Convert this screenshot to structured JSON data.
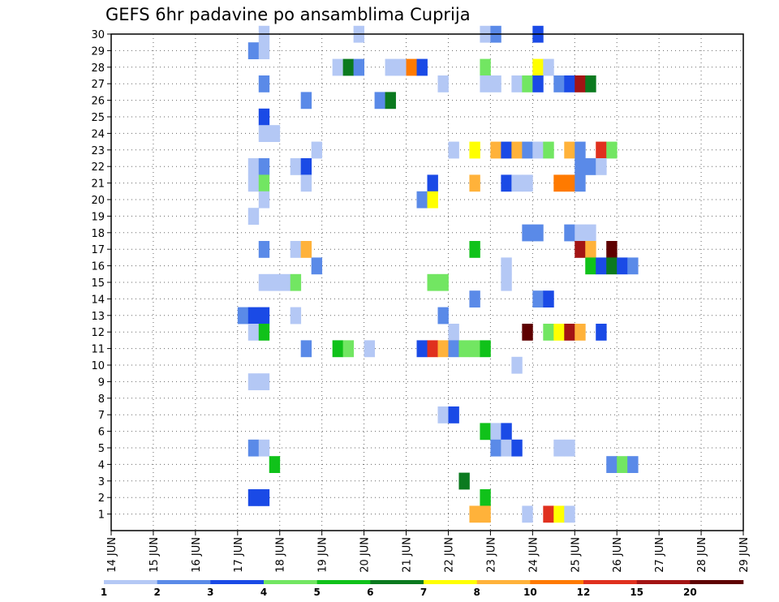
{
  "chart_data": {
    "type": "heatmap",
    "title": "GEFS 6hr padavine po ansamblima Cuprija",
    "xlabel": "",
    "ylabel": "",
    "x_tick_labels": [
      "14 JUN",
      "15 JUN",
      "16 JUN",
      "17 JUN",
      "18 JUN",
      "19 JUN",
      "20 JUN",
      "21 JUN",
      "22 JUN",
      "23 JUN",
      "24 JUN",
      "25 JUN",
      "26 JUN",
      "27 JUN",
      "28 JUN",
      "29 JUN"
    ],
    "y_tick_labels": [
      "1",
      "2",
      "3",
      "4",
      "5",
      "6",
      "7",
      "8",
      "9",
      "10",
      "11",
      "12",
      "13",
      "14",
      "15",
      "16",
      "17",
      "18",
      "19",
      "20",
      "21",
      "22",
      "23",
      "24",
      "25",
      "26",
      "27",
      "28",
      "29",
      "30"
    ],
    "y_range": [
      0,
      30
    ],
    "grid": true,
    "colorbar": {
      "labels": [
        "1",
        "2",
        "3",
        "4",
        "5",
        "6",
        "7",
        "8",
        "10",
        "12",
        "15",
        "20"
      ],
      "colors": [
        "#b4c8f5",
        "#5a8ae8",
        "#1a4ae6",
        "#72e662",
        "#10c21a",
        "#0b7a1f",
        "#ffff00",
        "#ffb23a",
        "#ff7a00",
        "#e0301e",
        "#a31414",
        "#5e0000"
      ]
    },
    "steps_per_day": 4,
    "cells": [
      {
        "m": 30,
        "t": 14,
        "c": 1
      },
      {
        "m": 30,
        "t": 23,
        "c": 1
      },
      {
        "m": 30,
        "t": 35,
        "c": 1
      },
      {
        "m": 30,
        "t": 36,
        "c": 2
      },
      {
        "m": 30,
        "t": 40,
        "c": 3
      },
      {
        "m": 29,
        "t": 13,
        "c": 2
      },
      {
        "m": 29,
        "t": 14,
        "c": 1
      },
      {
        "m": 28,
        "t": 21,
        "c": 1
      },
      {
        "m": 28,
        "t": 22,
        "c": 6
      },
      {
        "m": 28,
        "t": 23,
        "c": 2
      },
      {
        "m": 28,
        "t": 26,
        "c": 1
      },
      {
        "m": 28,
        "t": 27,
        "c": 1
      },
      {
        "m": 28,
        "t": 28,
        "c": 9
      },
      {
        "m": 28,
        "t": 29,
        "c": 3
      },
      {
        "m": 28,
        "t": 35,
        "c": 4
      },
      {
        "m": 28,
        "t": 40,
        "c": 7
      },
      {
        "m": 28,
        "t": 41,
        "c": 1
      },
      {
        "m": 27,
        "t": 14,
        "c": 2
      },
      {
        "m": 27,
        "t": 31,
        "c": 1
      },
      {
        "m": 27,
        "t": 35,
        "c": 1
      },
      {
        "m": 27,
        "t": 36,
        "c": 1
      },
      {
        "m": 27,
        "t": 38,
        "c": 1
      },
      {
        "m": 27,
        "t": 39,
        "c": 4
      },
      {
        "m": 27,
        "t": 40,
        "c": 3
      },
      {
        "m": 27,
        "t": 42,
        "c": 2
      },
      {
        "m": 27,
        "t": 43,
        "c": 3
      },
      {
        "m": 27,
        "t": 44,
        "c": 11
      },
      {
        "m": 27,
        "t": 45,
        "c": 6
      },
      {
        "m": 26,
        "t": 18,
        "c": 2
      },
      {
        "m": 26,
        "t": 25,
        "c": 2
      },
      {
        "m": 26,
        "t": 26,
        "c": 6
      },
      {
        "m": 25,
        "t": 14,
        "c": 3
      },
      {
        "m": 24,
        "t": 14,
        "c": 1
      },
      {
        "m": 24,
        "t": 15,
        "c": 1
      },
      {
        "m": 23,
        "t": 19,
        "c": 1
      },
      {
        "m": 23,
        "t": 32,
        "c": 1
      },
      {
        "m": 23,
        "t": 34,
        "c": 7
      },
      {
        "m": 23,
        "t": 36,
        "c": 8
      },
      {
        "m": 23,
        "t": 37,
        "c": 3
      },
      {
        "m": 23,
        "t": 38,
        "c": 8
      },
      {
        "m": 23,
        "t": 39,
        "c": 2
      },
      {
        "m": 23,
        "t": 40,
        "c": 1
      },
      {
        "m": 23,
        "t": 41,
        "c": 4
      },
      {
        "m": 23,
        "t": 43,
        "c": 8
      },
      {
        "m": 23,
        "t": 44,
        "c": 2
      },
      {
        "m": 23,
        "t": 46,
        "c": 10
      },
      {
        "m": 23,
        "t": 47,
        "c": 4
      },
      {
        "m": 22,
        "t": 13,
        "c": 1
      },
      {
        "m": 22,
        "t": 14,
        "c": 2
      },
      {
        "m": 22,
        "t": 17,
        "c": 1
      },
      {
        "m": 22,
        "t": 18,
        "c": 3
      },
      {
        "m": 22,
        "t": 44,
        "c": 2
      },
      {
        "m": 22,
        "t": 45,
        "c": 2
      },
      {
        "m": 22,
        "t": 46,
        "c": 1
      },
      {
        "m": 21,
        "t": 13,
        "c": 1
      },
      {
        "m": 21,
        "t": 14,
        "c": 4
      },
      {
        "m": 21,
        "t": 18,
        "c": 1
      },
      {
        "m": 21,
        "t": 30,
        "c": 3
      },
      {
        "m": 21,
        "t": 34,
        "c": 8
      },
      {
        "m": 21,
        "t": 37,
        "c": 3
      },
      {
        "m": 21,
        "t": 38,
        "c": 1
      },
      {
        "m": 21,
        "t": 39,
        "c": 1
      },
      {
        "m": 21,
        "t": 42,
        "c": 9
      },
      {
        "m": 21,
        "t": 43,
        "c": 9
      },
      {
        "m": 21,
        "t": 44,
        "c": 2
      },
      {
        "m": 20,
        "t": 14,
        "c": 1
      },
      {
        "m": 20,
        "t": 29,
        "c": 2
      },
      {
        "m": 20,
        "t": 30,
        "c": 7
      },
      {
        "m": 19,
        "t": 13,
        "c": 1
      },
      {
        "m": 18,
        "t": 39,
        "c": 2
      },
      {
        "m": 18,
        "t": 40,
        "c": 2
      },
      {
        "m": 18,
        "t": 43,
        "c": 2
      },
      {
        "m": 18,
        "t": 44,
        "c": 1
      },
      {
        "m": 18,
        "t": 45,
        "c": 1
      },
      {
        "m": 17,
        "t": 14,
        "c": 2
      },
      {
        "m": 17,
        "t": 17,
        "c": 1
      },
      {
        "m": 17,
        "t": 18,
        "c": 8
      },
      {
        "m": 17,
        "t": 34,
        "c": 5
      },
      {
        "m": 17,
        "t": 44,
        "c": 11
      },
      {
        "m": 17,
        "t": 45,
        "c": 8
      },
      {
        "m": 17,
        "t": 47,
        "c": 12
      },
      {
        "m": 16,
        "t": 19,
        "c": 2
      },
      {
        "m": 16,
        "t": 37,
        "c": 1
      },
      {
        "m": 16,
        "t": 45,
        "c": 5
      },
      {
        "m": 16,
        "t": 46,
        "c": 3
      },
      {
        "m": 16,
        "t": 47,
        "c": 6
      },
      {
        "m": 16,
        "t": 48,
        "c": 3
      },
      {
        "m": 16,
        "t": 49,
        "c": 2
      },
      {
        "m": 15,
        "t": 14,
        "c": 1
      },
      {
        "m": 15,
        "t": 15,
        "c": 1
      },
      {
        "m": 15,
        "t": 16,
        "c": 1
      },
      {
        "m": 15,
        "t": 17,
        "c": 4
      },
      {
        "m": 15,
        "t": 30,
        "c": 4
      },
      {
        "m": 15,
        "t": 31,
        "c": 4
      },
      {
        "m": 15,
        "t": 37,
        "c": 1
      },
      {
        "m": 14,
        "t": 34,
        "c": 2
      },
      {
        "m": 14,
        "t": 40,
        "c": 2
      },
      {
        "m": 14,
        "t": 41,
        "c": 3
      },
      {
        "m": 13,
        "t": 12,
        "c": 2
      },
      {
        "m": 13,
        "t": 13,
        "c": 3
      },
      {
        "m": 13,
        "t": 14,
        "c": 3
      },
      {
        "m": 13,
        "t": 17,
        "c": 1
      },
      {
        "m": 13,
        "t": 31,
        "c": 2
      },
      {
        "m": 12,
        "t": 13,
        "c": 1
      },
      {
        "m": 12,
        "t": 14,
        "c": 5
      },
      {
        "m": 12,
        "t": 32,
        "c": 1
      },
      {
        "m": 12,
        "t": 39,
        "c": 12
      },
      {
        "m": 12,
        "t": 41,
        "c": 4
      },
      {
        "m": 12,
        "t": 42,
        "c": 7
      },
      {
        "m": 12,
        "t": 43,
        "c": 11
      },
      {
        "m": 12,
        "t": 44,
        "c": 8
      },
      {
        "m": 12,
        "t": 46,
        "c": 3
      },
      {
        "m": 11,
        "t": 18,
        "c": 2
      },
      {
        "m": 11,
        "t": 21,
        "c": 5
      },
      {
        "m": 11,
        "t": 22,
        "c": 4
      },
      {
        "m": 11,
        "t": 24,
        "c": 1
      },
      {
        "m": 11,
        "t": 29,
        "c": 3
      },
      {
        "m": 11,
        "t": 30,
        "c": 10
      },
      {
        "m": 11,
        "t": 31,
        "c": 8
      },
      {
        "m": 11,
        "t": 32,
        "c": 2
      },
      {
        "m": 11,
        "t": 33,
        "c": 4
      },
      {
        "m": 11,
        "t": 34,
        "c": 4
      },
      {
        "m": 11,
        "t": 35,
        "c": 5
      },
      {
        "m": 10,
        "t": 38,
        "c": 1
      },
      {
        "m": 9,
        "t": 13,
        "c": 1
      },
      {
        "m": 9,
        "t": 14,
        "c": 1
      },
      {
        "m": 7,
        "t": 31,
        "c": 1
      },
      {
        "m": 7,
        "t": 32,
        "c": 3
      },
      {
        "m": 6,
        "t": 35,
        "c": 5
      },
      {
        "m": 6,
        "t": 36,
        "c": 1
      },
      {
        "m": 6,
        "t": 37,
        "c": 3
      },
      {
        "m": 5,
        "t": 13,
        "c": 2
      },
      {
        "m": 5,
        "t": 14,
        "c": 1
      },
      {
        "m": 5,
        "t": 36,
        "c": 2
      },
      {
        "m": 5,
        "t": 37,
        "c": 1
      },
      {
        "m": 5,
        "t": 38,
        "c": 3
      },
      {
        "m": 5,
        "t": 42,
        "c": 1
      },
      {
        "m": 5,
        "t": 43,
        "c": 1
      },
      {
        "m": 4,
        "t": 15,
        "c": 5
      },
      {
        "m": 4,
        "t": 47,
        "c": 2
      },
      {
        "m": 4,
        "t": 48,
        "c": 4
      },
      {
        "m": 4,
        "t": 49,
        "c": 2
      },
      {
        "m": 3,
        "t": 33,
        "c": 6
      },
      {
        "m": 2,
        "t": 13,
        "c": 3
      },
      {
        "m": 2,
        "t": 14,
        "c": 3
      },
      {
        "m": 2,
        "t": 35,
        "c": 5
      },
      {
        "m": 1,
        "t": 34,
        "c": 8
      },
      {
        "m": 1,
        "t": 35,
        "c": 8
      },
      {
        "m": 1,
        "t": 39,
        "c": 1
      },
      {
        "m": 1,
        "t": 41,
        "c": 10
      },
      {
        "m": 1,
        "t": 42,
        "c": 7
      },
      {
        "m": 1,
        "t": 43,
        "c": 1
      }
    ]
  }
}
